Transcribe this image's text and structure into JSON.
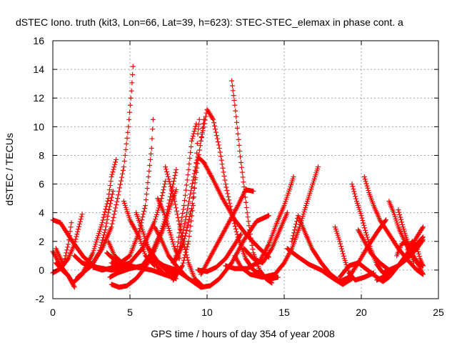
{
  "chart_data": {
    "type": "scatter",
    "title": "dSTEC Iono. truth (kit3, Lon=66, Lat=39, h=623): STEC-STEC_elemax in phase cont. a",
    "xlabel": "GPS time / hours of day 354 of year 2008",
    "ylabel": "dSTEC  / TECUs",
    "xlim": [
      0,
      25
    ],
    "ylim": [
      -2,
      16
    ],
    "x_ticks": [
      "0",
      "5",
      "10",
      "15",
      "20",
      "25"
    ],
    "y_ticks": [
      "-2",
      "0",
      "2",
      "4",
      "6",
      "8",
      "10",
      "12",
      "14",
      "16"
    ],
    "grid": true,
    "marker": "+",
    "series_color": "#ff0000",
    "tracks": [
      [
        [
          0.0,
          1.3
        ],
        [
          0.5,
          0.3
        ],
        [
          1.0,
          -0.4
        ],
        [
          1.3,
          -0.9
        ],
        [
          1.9,
          -0.3
        ],
        [
          2.6,
          1.2
        ],
        [
          3.2,
          3.3
        ],
        [
          3.6,
          5.0
        ],
        [
          3.8,
          6.5
        ],
        [
          4.1,
          7.7
        ]
      ],
      [
        [
          0.0,
          3.5
        ],
        [
          0.5,
          3.3
        ],
        [
          1.2,
          2.1
        ],
        [
          2.0,
          0.9
        ],
        [
          2.8,
          0.2
        ],
        [
          3.8,
          0.0
        ],
        [
          4.8,
          0.2
        ]
      ],
      [
        [
          0.0,
          -0.2
        ],
        [
          0.5,
          0.1
        ],
        [
          1.0,
          0.8
        ],
        [
          1.4,
          1.8
        ],
        [
          1.9,
          3.9
        ]
      ],
      [
        [
          0.2,
          0.5
        ],
        [
          0.6,
          0.0
        ],
        [
          1.0,
          -0.4
        ],
        [
          1.2,
          -0.8
        ],
        [
          1.4,
          -1.2
        ]
      ],
      [
        [
          0.2,
          1.5
        ],
        [
          0.5,
          0.8
        ],
        [
          0.7,
          0.4
        ],
        [
          1.0,
          1.8
        ],
        [
          1.2,
          3.3
        ]
      ],
      [
        [
          1.4,
          1.0
        ],
        [
          1.9,
          0.5
        ],
        [
          2.5,
          0.3
        ],
        [
          3.0,
          1.2
        ],
        [
          3.4,
          2.8
        ],
        [
          3.6,
          4.0
        ],
        [
          3.9,
          5.5
        ]
      ],
      [
        [
          1.6,
          -0.5
        ],
        [
          2.5,
          0.3
        ],
        [
          3.2,
          1.5
        ],
        [
          3.8,
          3.0
        ],
        [
          4.2,
          5.0
        ],
        [
          4.6,
          7.2
        ],
        [
          4.9,
          10.0
        ],
        [
          5.1,
          12.5
        ],
        [
          5.2,
          14.2
        ]
      ],
      [
        [
          2.6,
          0.2
        ],
        [
          3.2,
          0.0
        ],
        [
          4.0,
          0.2
        ],
        [
          5.0,
          1.0
        ],
        [
          5.6,
          2.7
        ],
        [
          6.0,
          4.5
        ],
        [
          6.2,
          6.5
        ],
        [
          6.4,
          8.5
        ],
        [
          6.5,
          10.5
        ]
      ],
      [
        [
          3.5,
          1.2
        ],
        [
          4.2,
          0.5
        ],
        [
          5.0,
          0.1
        ],
        [
          5.8,
          0.3
        ],
        [
          6.4,
          1.2
        ],
        [
          7.0,
          2.6
        ],
        [
          7.4,
          4.0
        ],
        [
          7.8,
          6.0
        ],
        [
          8.0,
          7.0
        ]
      ],
      [
        [
          3.6,
          2.0
        ],
        [
          4.0,
          1.0
        ],
        [
          4.6,
          0.4
        ],
        [
          5.4,
          0.2
        ],
        [
          6.4,
          0.0
        ],
        [
          7.2,
          -0.3
        ]
      ],
      [
        [
          3.8,
          0.5
        ],
        [
          4.4,
          0.3
        ],
        [
          5.0,
          0.5
        ],
        [
          5.8,
          1.5
        ],
        [
          6.6,
          3.4
        ],
        [
          7.0,
          4.8
        ],
        [
          7.3,
          6.2
        ]
      ],
      [
        [
          3.7,
          -0.5
        ],
        [
          4.2,
          -0.2
        ],
        [
          5.0,
          0.1
        ]
      ],
      [
        [
          3.8,
          -1.0
        ],
        [
          4.3,
          -1.2
        ],
        [
          4.8,
          -1.1
        ],
        [
          5.4,
          -0.6
        ],
        [
          6.0,
          0.2
        ],
        [
          6.6,
          1.4
        ],
        [
          7.2,
          3.0
        ],
        [
          7.6,
          4.4
        ],
        [
          8.0,
          5.6
        ]
      ],
      [
        [
          4.6,
          4.8
        ],
        [
          5.0,
          3.5
        ],
        [
          5.6,
          2.3
        ],
        [
          6.0,
          1.0
        ],
        [
          6.6,
          0.3
        ]
      ],
      [
        [
          5.4,
          4.0
        ],
        [
          5.8,
          2.8
        ],
        [
          6.2,
          1.5
        ],
        [
          6.8,
          0.6
        ],
        [
          7.4,
          -0.1
        ],
        [
          8.0,
          -0.3
        ]
      ],
      [
        [
          6.0,
          2.0
        ],
        [
          6.4,
          1.0
        ],
        [
          6.8,
          0.2
        ],
        [
          7.2,
          -0.3
        ],
        [
          8.0,
          -0.6
        ]
      ],
      [
        [
          6.6,
          3.0
        ],
        [
          7.0,
          2.2
        ],
        [
          7.5,
          1.0
        ],
        [
          8.0,
          0.3
        ],
        [
          8.6,
          -0.4
        ]
      ],
      [
        [
          6.8,
          5.0
        ],
        [
          7.2,
          4.0
        ],
        [
          7.6,
          2.6
        ],
        [
          7.9,
          1.5
        ],
        [
          8.2,
          0.8
        ]
      ],
      [
        [
          7.3,
          7.2
        ],
        [
          7.6,
          6.0
        ],
        [
          7.9,
          4.8
        ],
        [
          8.2,
          3.2
        ],
        [
          8.5,
          1.8
        ],
        [
          8.8,
          0.5
        ],
        [
          9.2,
          -0.6
        ],
        [
          9.6,
          -1.0
        ]
      ],
      [
        [
          6.5,
          0.8
        ],
        [
          7.2,
          0.3
        ],
        [
          8.0,
          0.0
        ],
        [
          8.8,
          -0.6
        ],
        [
          9.6,
          -1.2
        ],
        [
          10.2,
          -1.1
        ],
        [
          10.8,
          -0.6
        ],
        [
          11.6,
          0.5
        ],
        [
          12.4,
          2.1
        ],
        [
          13.2,
          3.4
        ],
        [
          14.0,
          3.8
        ]
      ],
      [
        [
          7.8,
          -0.7
        ],
        [
          8.4,
          0.3
        ],
        [
          8.8,
          2.0
        ],
        [
          9.1,
          4.5
        ],
        [
          9.3,
          7.5
        ],
        [
          9.4,
          9.5
        ],
        [
          9.5,
          10.5
        ]
      ],
      [
        [
          8.0,
          0.7
        ],
        [
          8.5,
          2.0
        ],
        [
          9.0,
          4.3
        ],
        [
          9.3,
          6.8
        ],
        [
          9.6,
          9.0
        ],
        [
          9.8,
          10.5
        ]
      ],
      [
        [
          8.0,
          1.0
        ],
        [
          8.2,
          2.6
        ],
        [
          8.5,
          4.5
        ],
        [
          8.8,
          7.0
        ],
        [
          9.0,
          9.0
        ],
        [
          9.3,
          10.2
        ]
      ],
      [
        [
          7.8,
          0.5
        ],
        [
          8.2,
          1.4
        ],
        [
          8.6,
          3.5
        ],
        [
          9.0,
          5.8
        ],
        [
          9.4,
          7.9
        ],
        [
          9.8,
          7.5
        ],
        [
          10.3,
          6.5
        ],
        [
          11.0,
          5.0
        ],
        [
          11.8,
          3.5
        ],
        [
          12.6,
          2.4
        ],
        [
          13.4,
          1.5
        ],
        [
          14.0,
          0.9
        ]
      ],
      [
        [
          9.6,
          -0.3
        ],
        [
          10.0,
          0.5
        ],
        [
          10.5,
          1.5
        ],
        [
          11.0,
          2.5
        ],
        [
          11.5,
          3.5
        ],
        [
          12.0,
          4.5
        ],
        [
          12.5,
          5.6
        ],
        [
          13.0,
          5.5
        ]
      ],
      [
        [
          9.6,
          9.0
        ],
        [
          10.0,
          11.2
        ],
        [
          10.4,
          10.5
        ],
        [
          10.8,
          8.5
        ],
        [
          11.2,
          6.0
        ],
        [
          11.6,
          4.0
        ],
        [
          12.0,
          2.3
        ],
        [
          12.5,
          0.8
        ],
        [
          13.0,
          0.0
        ],
        [
          13.6,
          -0.4
        ],
        [
          14.2,
          -0.6
        ],
        [
          14.6,
          -0.5
        ]
      ],
      [
        [
          9.4,
          0.0
        ],
        [
          10.0,
          -0.1
        ],
        [
          10.6,
          0.2
        ],
        [
          11.2,
          0.8
        ],
        [
          11.8,
          1.8
        ],
        [
          12.2,
          2.5
        ]
      ],
      [
        [
          11.6,
          13.2
        ],
        [
          11.8,
          11.5
        ],
        [
          12.0,
          9.5
        ],
        [
          12.2,
          7.5
        ],
        [
          12.4,
          5.8
        ],
        [
          12.6,
          4.0
        ],
        [
          12.8,
          2.5
        ],
        [
          13.0,
          1.2
        ],
        [
          13.4,
          0.0
        ],
        [
          13.8,
          -0.6
        ],
        [
          14.2,
          -0.9
        ]
      ],
      [
        [
          11.8,
          1.0
        ],
        [
          12.2,
          0.2
        ],
        [
          12.8,
          -0.3
        ],
        [
          13.6,
          -0.5
        ],
        [
          14.4,
          -0.3
        ],
        [
          15.0,
          0.5
        ],
        [
          15.5,
          1.5
        ],
        [
          16.0,
          3.0
        ],
        [
          16.5,
          4.8
        ],
        [
          17.0,
          6.5
        ],
        [
          17.2,
          7.2
        ]
      ],
      [
        [
          11.2,
          0.3
        ],
        [
          11.8,
          0.1
        ],
        [
          12.6,
          0.1
        ],
        [
          13.4,
          0.6
        ],
        [
          14.0,
          1.8
        ],
        [
          14.6,
          3.5
        ],
        [
          15.0,
          4.5
        ],
        [
          15.4,
          5.8
        ],
        [
          15.6,
          6.5
        ]
      ],
      [
        [
          12.4,
          1.5
        ],
        [
          13.0,
          0.8
        ],
        [
          13.6,
          0.5
        ],
        [
          14.2,
          1.5
        ],
        [
          14.8,
          3.0
        ],
        [
          15.2,
          4.0
        ]
      ],
      [
        [
          15.5,
          2.0
        ],
        [
          15.9,
          3.8
        ],
        [
          16.2,
          3.0
        ],
        [
          16.8,
          1.5
        ],
        [
          17.4,
          0.5
        ],
        [
          18.0,
          -0.3
        ],
        [
          18.6,
          -0.8
        ],
        [
          19.2,
          -0.5
        ],
        [
          19.8,
          0.5
        ],
        [
          20.4,
          1.6
        ],
        [
          21.0,
          2.6
        ],
        [
          21.6,
          3.5
        ]
      ],
      [
        [
          15.2,
          1.5
        ],
        [
          15.8,
          1.0
        ],
        [
          16.6,
          0.4
        ],
        [
          17.4,
          0.0
        ],
        [
          18.2,
          -0.6
        ],
        [
          18.8,
          -1.0
        ],
        [
          19.4,
          -0.6
        ]
      ],
      [
        [
          18.3,
          3.0
        ],
        [
          18.6,
          2.0
        ],
        [
          18.9,
          0.8
        ],
        [
          19.2,
          -0.2
        ],
        [
          19.6,
          -0.7
        ],
        [
          20.2,
          -0.5
        ],
        [
          20.8,
          -0.2
        ]
      ],
      [
        [
          19.4,
          6.0
        ],
        [
          19.7,
          4.8
        ],
        [
          20.0,
          3.8
        ],
        [
          20.3,
          2.6
        ],
        [
          20.6,
          1.5
        ],
        [
          21.0,
          0.4
        ],
        [
          21.4,
          -0.2
        ],
        [
          22.0,
          0.1
        ]
      ],
      [
        [
          20.2,
          6.5
        ],
        [
          20.5,
          5.4
        ],
        [
          20.8,
          4.5
        ],
        [
          21.2,
          3.5
        ],
        [
          21.8,
          2.5
        ],
        [
          22.4,
          1.5
        ],
        [
          23.0,
          0.7
        ],
        [
          23.6,
          0.0
        ],
        [
          24.0,
          -0.3
        ]
      ],
      [
        [
          19.8,
          2.8
        ],
        [
          20.2,
          2.0
        ],
        [
          20.6,
          1.2
        ],
        [
          21.2,
          0.5
        ],
        [
          21.8,
          0.0
        ],
        [
          22.4,
          0.3
        ],
        [
          23.0,
          0.8
        ],
        [
          23.6,
          1.5
        ],
        [
          24.0,
          2.1
        ]
      ],
      [
        [
          18.6,
          -0.5
        ],
        [
          19.2,
          0.3
        ],
        [
          19.8,
          0.5
        ],
        [
          20.4,
          0.0
        ],
        [
          21.0,
          -0.5
        ],
        [
          21.4,
          -0.8
        ],
        [
          21.8,
          -0.5
        ],
        [
          22.4,
          0.3
        ],
        [
          23.0,
          1.2
        ],
        [
          23.6,
          2.3
        ],
        [
          24.0,
          3.0
        ]
      ],
      [
        [
          21.0,
          -0.7
        ],
        [
          21.8,
          -0.3
        ],
        [
          22.4,
          0.3
        ],
        [
          23.0,
          1.0
        ],
        [
          23.6,
          1.8
        ],
        [
          24.0,
          2.3
        ]
      ],
      [
        [
          21.8,
          4.8
        ],
        [
          22.1,
          4.0
        ],
        [
          22.4,
          3.0
        ],
        [
          22.8,
          2.0
        ],
        [
          23.2,
          1.2
        ],
        [
          23.6,
          0.6
        ],
        [
          24.0,
          -0.3
        ]
      ],
      [
        [
          22.4,
          4.2
        ],
        [
          22.7,
          3.0
        ],
        [
          23.0,
          2.0
        ],
        [
          23.3,
          1.2
        ],
        [
          23.6,
          0.5
        ],
        [
          24.0,
          0.3
        ]
      ],
      [
        [
          22.3,
          1.0
        ],
        [
          22.6,
          1.8
        ],
        [
          22.9,
          2.0
        ],
        [
          23.2,
          1.2
        ],
        [
          23.4,
          0.6
        ]
      ],
      [
        [
          23.0,
          1.4
        ],
        [
          23.3,
          2.0
        ],
        [
          23.6,
          1.6
        ],
        [
          23.8,
          0.8
        ],
        [
          24.0,
          0.3
        ]
      ]
    ]
  }
}
